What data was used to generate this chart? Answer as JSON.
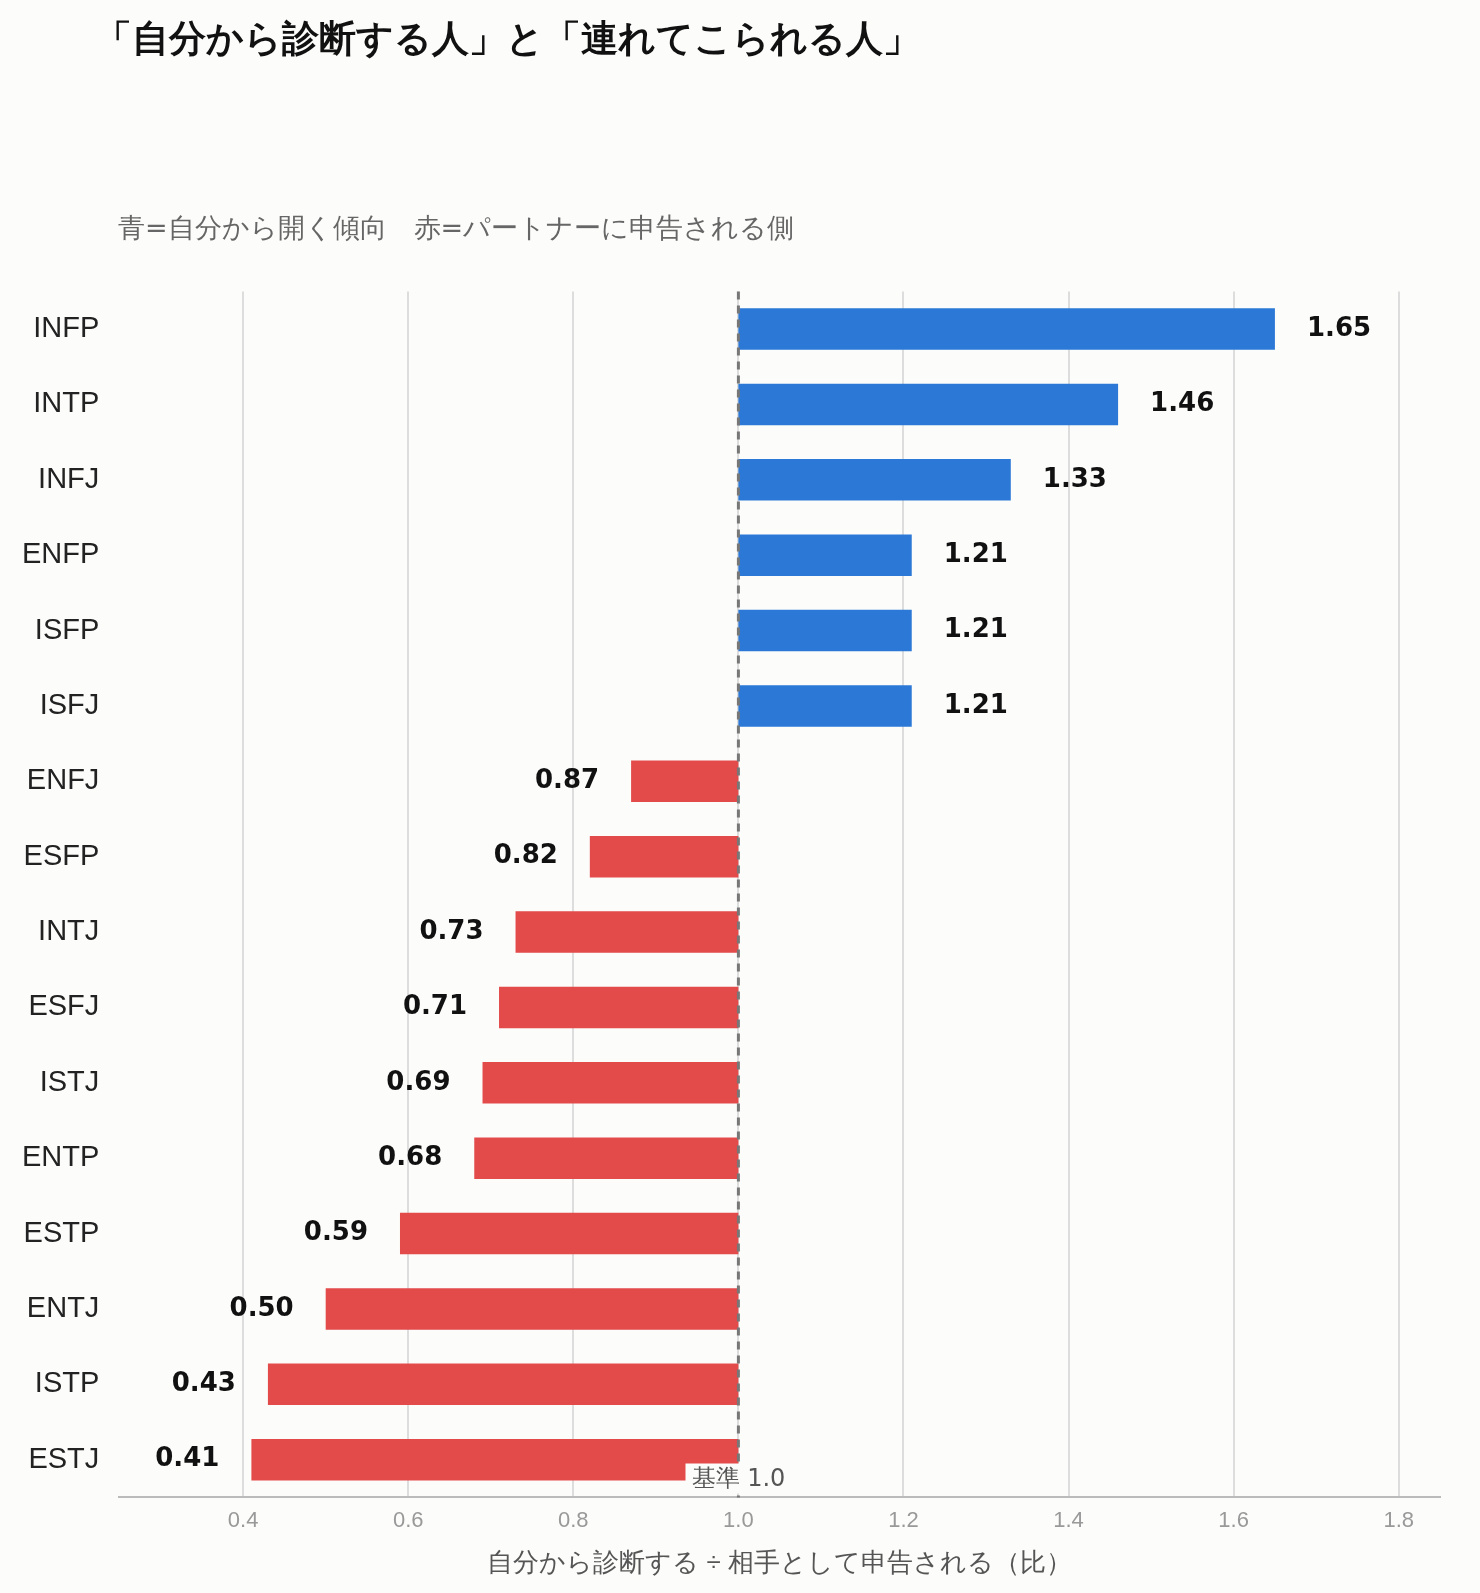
{
  "chart_data": {
    "type": "bar",
    "orientation": "horizontal",
    "title": "「自分から診断する人」と「連れてこられる人」",
    "subtitle": "青=自分から開く傾向　赤=パートナーに申告される側",
    "xlabel": "自分から診断する ÷ 相手として申告される（比）",
    "categories": [
      "INFP",
      "INTP",
      "INFJ",
      "ENFP",
      "ISFP",
      "ISFJ",
      "ENFJ",
      "ESFP",
      "INTJ",
      "ESFJ",
      "ISTJ",
      "ENTP",
      "ESTP",
      "ENTJ",
      "ISTP",
      "ESTJ"
    ],
    "base": [
      1,
      1,
      1,
      1,
      1,
      1,
      1,
      1,
      1,
      1,
      1,
      1,
      1,
      1,
      1,
      1
    ],
    "values": [
      0.65,
      0.46,
      0.33,
      0.21,
      0.21,
      0.21,
      -0.13,
      -0.18,
      -0.27,
      -0.29,
      -0.31,
      -0.32,
      -0.41,
      -0.5,
      -0.57,
      -0.59
    ],
    "value_labels": [
      "1.65",
      "1.46",
      "1.33",
      "1.21",
      "1.21",
      "1.21",
      "0.87",
      "0.82",
      "0.73",
      "0.71",
      "0.69",
      "0.68",
      "0.59",
      "0.50",
      "0.43",
      "0.41"
    ],
    "colors": [
      "#2b78d6",
      "#2b78d6",
      "#2b78d6",
      "#2b78d6",
      "#2b78d6",
      "#2b78d6",
      "#e34a4a",
      "#e34a4a",
      "#e34a4a",
      "#e34a4a",
      "#e34a4a",
      "#e34a4a",
      "#e34a4a",
      "#e34a4a",
      "#e34a4a",
      "#e34a4a"
    ],
    "xlim": [
      0.25,
      1.85
    ],
    "xticks": [
      0.4,
      0.6,
      0.8,
      {
        "value": 1,
        "label": "1.0"
      },
      1.2,
      1.4,
      1.6,
      1.8
    ],
    "ref_lines": [
      {
        "axis": "x",
        "value": 1.0,
        "label": "基準 1.0",
        "color": "#777777",
        "line_style": "dashed"
      }
    ],
    "grid": "x",
    "legend": false
  }
}
